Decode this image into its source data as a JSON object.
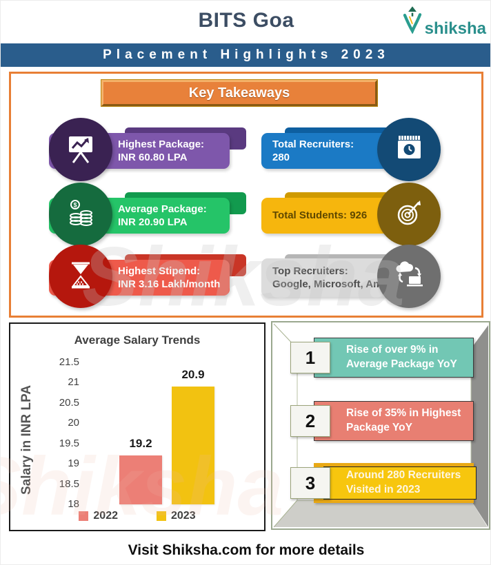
{
  "header": {
    "title": "BITS Goa",
    "logo_text": "shiksha",
    "banner": "Placement Highlights 2023"
  },
  "key_takeaways": {
    "title": "Key Takeaways",
    "items": [
      {
        "line1": "Highest Package:",
        "line2": "INR 60.80 LPA",
        "icon": "presentation-chart-icon",
        "ribbon": "#7e57ab",
        "tab": "#5a3a80",
        "circle": "#3a2252",
        "text_color": "#ffffff"
      },
      {
        "line1": "Total Recruiters:",
        "line2": "280",
        "icon": "calendar-clock-icon",
        "ribbon": "#1b7ac5",
        "tab": "#0e5fa0",
        "circle": "#134a75",
        "text_color": "#ffffff"
      },
      {
        "line1": "Average Package:",
        "line2": "INR 20.90 LPA",
        "icon": "coins-icon",
        "ribbon": "#25c468",
        "tab": "#129a4e",
        "circle": "#156b3e",
        "text_color": "#ffffff"
      },
      {
        "line1": "Total Students: 926",
        "line2": "",
        "icon": "target-icon",
        "ribbon": "#f6b60d",
        "tab": "#cf9a00",
        "circle": "#7d5f0e",
        "text_color": "#5f4800"
      },
      {
        "line1": "Highest Stipend:",
        "line2": "INR 3.16 Lakh/month",
        "icon": "hourglass-icon",
        "ribbon": "#ee5a4b",
        "tab": "#c93526",
        "circle": "#b5170d",
        "text_color": "#ffffff"
      },
      {
        "line1": "Top Recruiters:",
        "line2": "Google, Microsoft, Amazon",
        "icon": "cloud-sync-icon",
        "ribbon": "#dcdcdc",
        "tab": "#b5b5b5",
        "circle": "#6f6f6f",
        "text_color": "#4d4d4d"
      }
    ]
  },
  "chart_data": {
    "type": "bar",
    "title": "Average Salary Trends",
    "xlabel": "",
    "ylabel": "Salary in INR LPA",
    "categories": [
      "2022",
      "2023"
    ],
    "values": [
      19.2,
      20.9
    ],
    "colors": [
      "#ec7f76",
      "#f2c211"
    ],
    "ylim": [
      18,
      21.5
    ],
    "yticks": [
      "21.5",
      "21",
      "20.5",
      "20",
      "19.5",
      "19",
      "18.5",
      "18"
    ],
    "grid": false,
    "legend_position": "bottom",
    "data_labels": [
      "19.2",
      "20.9"
    ]
  },
  "highlights": {
    "items": [
      {
        "num": "1",
        "text": "Rise of over 9% in Average Package YoY",
        "color": "#72c7b4"
      },
      {
        "num": "2",
        "text": "Rise of 35% in Highest Package YoY",
        "color": "#e87f72"
      },
      {
        "num": "3",
        "text": "Around 280 Recruiters Visited in 2023",
        "color": "#f7c60e",
        "outer_color": "#e9a915"
      }
    ]
  },
  "footer": "Visit Shiksha.com for more details",
  "watermark": "Shiksha"
}
